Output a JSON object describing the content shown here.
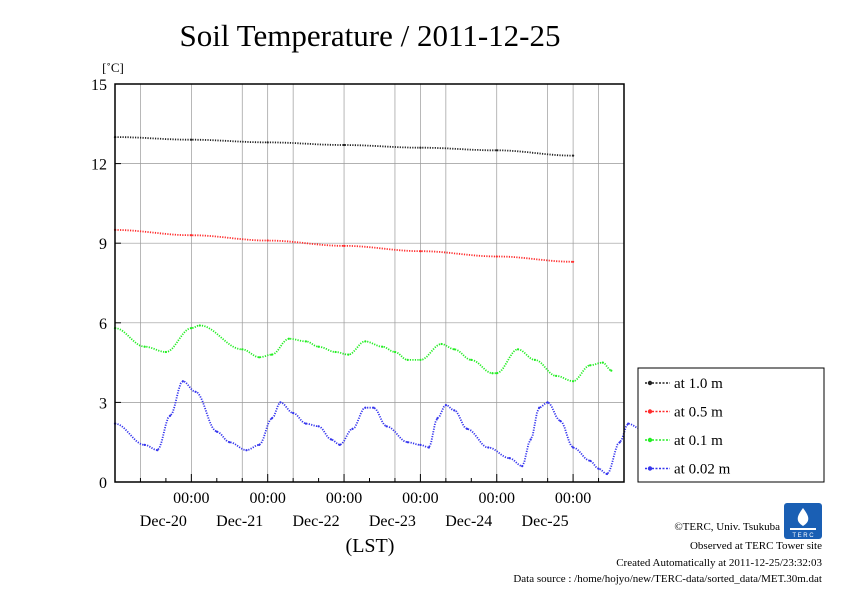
{
  "chart_data": {
    "type": "scatter",
    "title": "Soil Temperature / 2011-12-25",
    "ylabel_unit": "[˚C]",
    "xlabel": "(LST)",
    "ylim": [
      0,
      15
    ],
    "yticks": [
      0,
      3,
      6,
      9,
      12,
      15
    ],
    "xrange_hours": [
      -114,
      -6
    ],
    "xticks": [
      {
        "time": "00:00",
        "date": "Dec-20",
        "hour": -96
      },
      {
        "time": "00:00",
        "date": "Dec-21",
        "hour": -78
      },
      {
        "time": "00:00",
        "date": "Dec-22",
        "hour": -60
      },
      {
        "time": "00:00",
        "date": "Dec-23",
        "hour": -42
      },
      {
        "time": "00:00",
        "date": "Dec-24",
        "hour": -24
      },
      {
        "time": "00:00",
        "date": "Dec-25",
        "hour": -6
      }
    ],
    "grid": true,
    "legend_position": "right",
    "series": [
      {
        "name": "at 1.0 m",
        "color": "#222222",
        "points": [
          [
            -114,
            13.0
          ],
          [
            -96,
            12.9
          ],
          [
            -78,
            12.8
          ],
          [
            -60,
            12.7
          ],
          [
            -42,
            12.6
          ],
          [
            -24,
            12.5
          ],
          [
            -6,
            12.3
          ]
        ]
      },
      {
        "name": "at 0.5 m",
        "color": "#ff2a2a",
        "points": [
          [
            -114,
            9.5
          ],
          [
            -96,
            9.3
          ],
          [
            -78,
            9.1
          ],
          [
            -60,
            8.9
          ],
          [
            -42,
            8.7
          ],
          [
            -24,
            8.5
          ],
          [
            -6,
            8.3
          ]
        ]
      },
      {
        "name": "at 0.1 m",
        "color": "#22ee22",
        "points": [
          [
            -114,
            5.8
          ],
          [
            -107,
            5.1
          ],
          [
            -102,
            4.9
          ],
          [
            -96,
            5.8
          ],
          [
            -94,
            5.9
          ],
          [
            -84,
            5.0
          ],
          [
            -80,
            4.7
          ],
          [
            -77,
            4.8
          ],
          [
            -73,
            5.4
          ],
          [
            -69,
            5.3
          ],
          [
            -66,
            5.1
          ],
          [
            -62,
            4.9
          ],
          [
            -59,
            4.8
          ],
          [
            -55,
            5.3
          ],
          [
            -51,
            5.1
          ],
          [
            -48,
            4.9
          ],
          [
            -45,
            4.6
          ],
          [
            -42,
            4.6
          ],
          [
            -37,
            5.2
          ],
          [
            -34,
            5.0
          ],
          [
            -30,
            4.6
          ],
          [
            -25,
            4.1
          ],
          [
            -24,
            4.1
          ],
          [
            -19,
            5.0
          ],
          [
            -15,
            4.6
          ],
          [
            -10,
            4.0
          ],
          [
            -6,
            3.8
          ],
          [
            -2,
            4.4
          ],
          [
            1,
            4.5
          ],
          [
            3,
            4.2
          ]
        ]
      },
      {
        "name": "at 0.02 m",
        "color": "#3535ee",
        "points": [
          [
            -114,
            2.2
          ],
          [
            -107,
            1.4
          ],
          [
            -104,
            1.2
          ],
          [
            -101,
            2.5
          ],
          [
            -98,
            3.8
          ],
          [
            -95,
            3.4
          ],
          [
            -90,
            1.9
          ],
          [
            -87,
            1.5
          ],
          [
            -83,
            1.2
          ],
          [
            -80,
            1.4
          ],
          [
            -77,
            2.4
          ],
          [
            -75,
            3.0
          ],
          [
            -72,
            2.6
          ],
          [
            -69,
            2.2
          ],
          [
            -66,
            2.1
          ],
          [
            -63,
            1.6
          ],
          [
            -61,
            1.4
          ],
          [
            -58,
            2.0
          ],
          [
            -55,
            2.8
          ],
          [
            -53,
            2.8
          ],
          [
            -50,
            2.1
          ],
          [
            -45,
            1.5
          ],
          [
            -42,
            1.4
          ],
          [
            -40,
            1.3
          ],
          [
            -38,
            2.4
          ],
          [
            -36,
            2.9
          ],
          [
            -34,
            2.7
          ],
          [
            -31,
            2.0
          ],
          [
            -26,
            1.3
          ],
          [
            -21,
            0.9
          ],
          [
            -18,
            0.6
          ],
          [
            -16,
            1.6
          ],
          [
            -14,
            2.8
          ],
          [
            -12,
            3.0
          ],
          [
            -9,
            2.3
          ],
          [
            -6,
            1.3
          ],
          [
            -2,
            0.8
          ],
          [
            0,
            0.5
          ],
          [
            2,
            0.3
          ],
          [
            5,
            1.5
          ],
          [
            7,
            2.2
          ],
          [
            10,
            2.0
          ],
          [
            12,
            1.5
          ],
          [
            14,
            0.9
          ]
        ]
      }
    ]
  },
  "footer": {
    "copyright": "©TERC, Univ. Tsukuba",
    "site": "Observed at TERC Tower site",
    "created": "Created Automatically at 2011-12-25/23:32:03",
    "source": "Data source : /home/hojyo/new/TERC-data/sorted_data/MET.30m.dat"
  },
  "logo": {
    "text": "T E R C",
    "color": "#1a5fb4"
  }
}
